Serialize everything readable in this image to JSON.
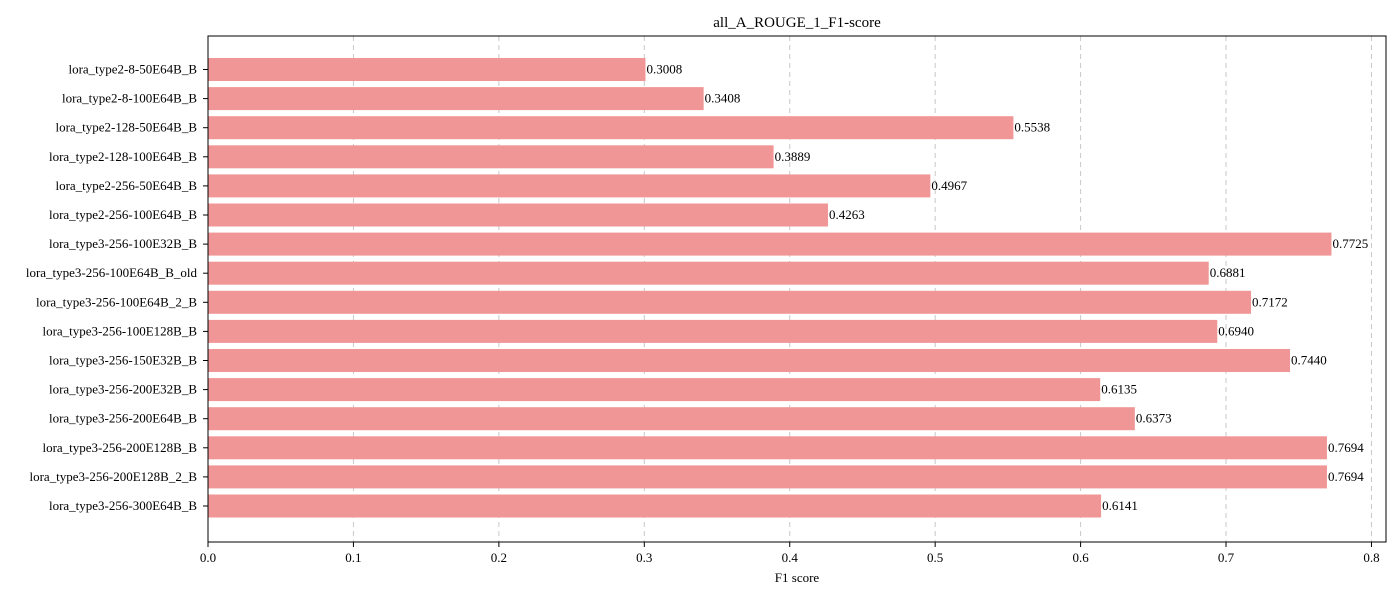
{
  "chart_data": {
    "type": "bar",
    "orientation": "horizontal",
    "title": "all_A_ROUGE_1_F1-score",
    "xlabel": "F1 score",
    "ylabel": "",
    "xlim": [
      0,
      0.81
    ],
    "xticks": [
      0.0,
      0.1,
      0.2,
      0.3,
      0.4,
      0.5,
      0.6,
      0.7,
      0.8
    ],
    "xtick_labels": [
      "0.0",
      "0.1",
      "0.2",
      "0.3",
      "0.4",
      "0.5",
      "0.6",
      "0.7",
      "0.8"
    ],
    "grid": "x-dashed",
    "bar_color": "#f09696",
    "categories": [
      "lora_type2-8-50E64B_B",
      "lora_type2-8-100E64B_B",
      "lora_type2-128-50E64B_B",
      "lora_type2-128-100E64B_B",
      "lora_type2-256-50E64B_B",
      "lora_type2-256-100E64B_B",
      "lora_type3-256-100E32B_B",
      "lora_type3-256-100E64B_B_old",
      "lora_type3-256-100E64B_2_B",
      "lora_type3-256-100E128B_B",
      "lora_type3-256-150E32B_B",
      "lora_type3-256-200E32B_B",
      "lora_type3-256-200E64B_B",
      "lora_type3-256-200E128B_B",
      "lora_type3-256-200E128B_2_B",
      "lora_type3-256-300E64B_B"
    ],
    "values": [
      0.3008,
      0.3408,
      0.5538,
      0.3889,
      0.4967,
      0.4263,
      0.7725,
      0.6881,
      0.7172,
      0.694,
      0.744,
      0.6135,
      0.6373,
      0.7694,
      0.7694,
      0.6141
    ],
    "value_labels": [
      "0.3008",
      "0.3408",
      "0.5538",
      "0.3889",
      "0.4967",
      "0.4263",
      "0.7725",
      "0.6881",
      "0.7172",
      "0.6940",
      "0.7440",
      "0.6135",
      "0.6373",
      "0.7694",
      "0.7694",
      "0.6141"
    ]
  }
}
